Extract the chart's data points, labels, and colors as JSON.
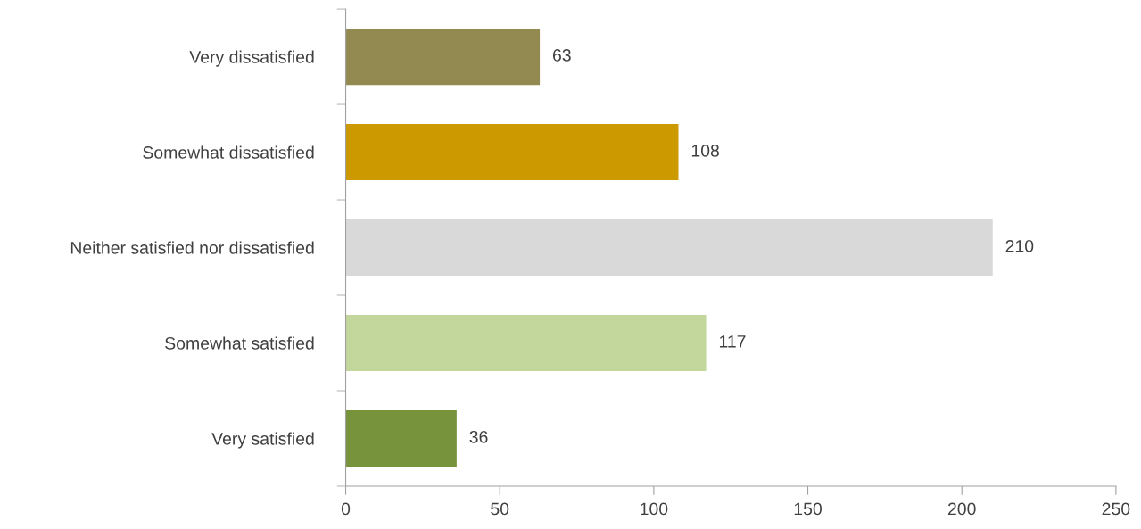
{
  "chart_data": {
    "type": "bar",
    "orientation": "horizontal",
    "categories": [
      "Very dissatisfied",
      "Somewhat dissatisfied",
      "Neither satisfied nor dissatisfied",
      "Somewhat satisfied",
      "Very satisfied"
    ],
    "values": [
      63,
      108,
      210,
      117,
      36
    ],
    "colors": [
      "#938a52",
      "#cc9900",
      "#d9d9d9",
      "#c3d69b",
      "#77933c"
    ],
    "xlim": [
      0,
      250
    ],
    "xticks": [
      0,
      50,
      100,
      150,
      200,
      250
    ],
    "data_labels": true,
    "grid": false,
    "legend": false
  }
}
